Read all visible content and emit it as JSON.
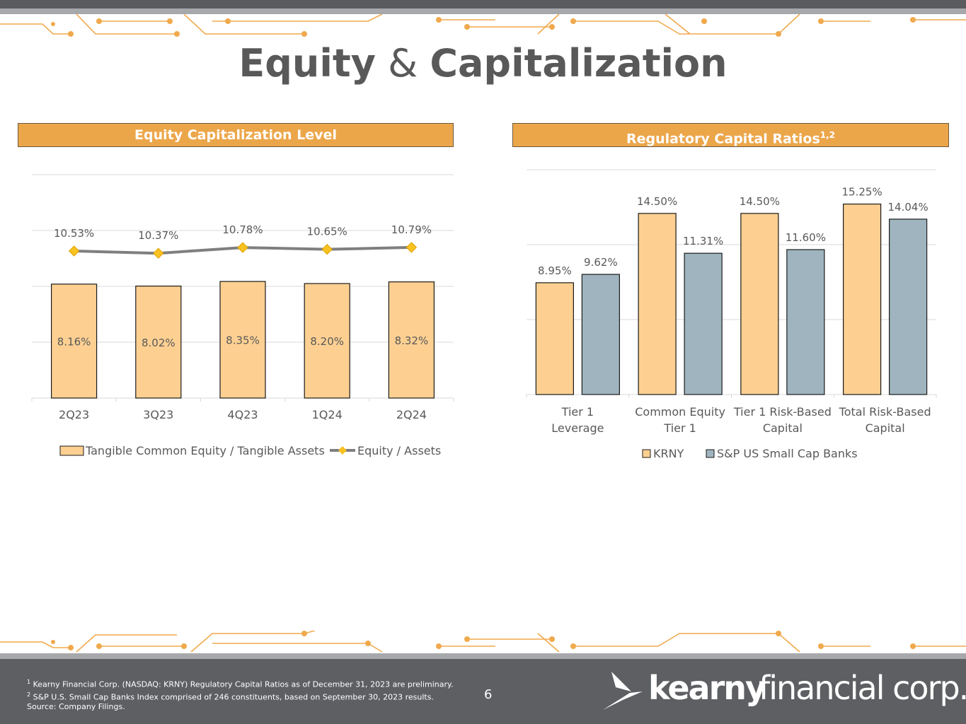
{
  "title_part1": "Equity",
  "title_amp": " & ",
  "title_part2": "Capitalization",
  "left_panel": {
    "header": "Equity Capitalization Level"
  },
  "right_panel": {
    "header": "Regulatory Capital Ratios",
    "header_sup": "1,2"
  },
  "colors": {
    "accent": "#eca64a",
    "bar_krny": "#fdd092",
    "bar_sp": "#9fb4bf",
    "line": "#7f7f7f",
    "marker": "#f9c221",
    "footer": "#5d5f62"
  },
  "chart_data": [
    {
      "type": "bar",
      "categories": [
        "2Q23",
        "3Q23",
        "4Q23",
        "1Q24",
        "2Q24"
      ],
      "series": [
        {
          "name": "Tangible Common Equity / Tangible Assets",
          "type": "bar",
          "values": [
            8.16,
            8.02,
            8.35,
            8.2,
            8.32
          ],
          "labels": [
            "8.16%",
            "8.02%",
            "8.35%",
            "8.20%",
            "8.32%"
          ]
        },
        {
          "name": "Equity / Assets",
          "type": "line",
          "values": [
            10.53,
            10.37,
            10.78,
            10.65,
            10.79
          ],
          "labels": [
            "10.53%",
            "10.37%",
            "10.78%",
            "10.65%",
            "10.79%"
          ]
        }
      ],
      "ylim": [
        0,
        16
      ],
      "grid": true,
      "legend": "bottom"
    },
    {
      "type": "bar",
      "categories": [
        "Tier 1\nLeverage",
        "Common Equity\nTier 1",
        "Tier 1 Risk-Based\nCapital",
        "Total Risk-Based\nCapital"
      ],
      "series": [
        {
          "name": "KRNY",
          "values": [
            8.95,
            14.5,
            14.5,
            15.25
          ],
          "labels": [
            "8.95%",
            "14.50%",
            "14.50%",
            "15.25%"
          ]
        },
        {
          "name": "S&P US Small Cap Banks",
          "values": [
            9.62,
            11.31,
            11.6,
            14.04
          ],
          "labels": [
            "9.62%",
            "11.31%",
            "11.60%",
            "14.04%"
          ]
        }
      ],
      "ylim": [
        0,
        18
      ],
      "grid": true,
      "legend": "bottom"
    }
  ],
  "footnotes": [
    {
      "sup": "1",
      "text": " Kearny Financial Corp. (NASDAQ: KRNY) Regulatory Capital Ratios as of December 31, 2023 are preliminary."
    },
    {
      "sup": "2",
      "text": " S&P U.S. Small Cap Banks Index comprised of 246 constituents, based on September 30, 2023 results."
    },
    {
      "sup": "",
      "text": "Source: Company Filings."
    }
  ],
  "page_number": "6",
  "logo": {
    "word1": "kearny",
    "word2": "financial corp."
  }
}
